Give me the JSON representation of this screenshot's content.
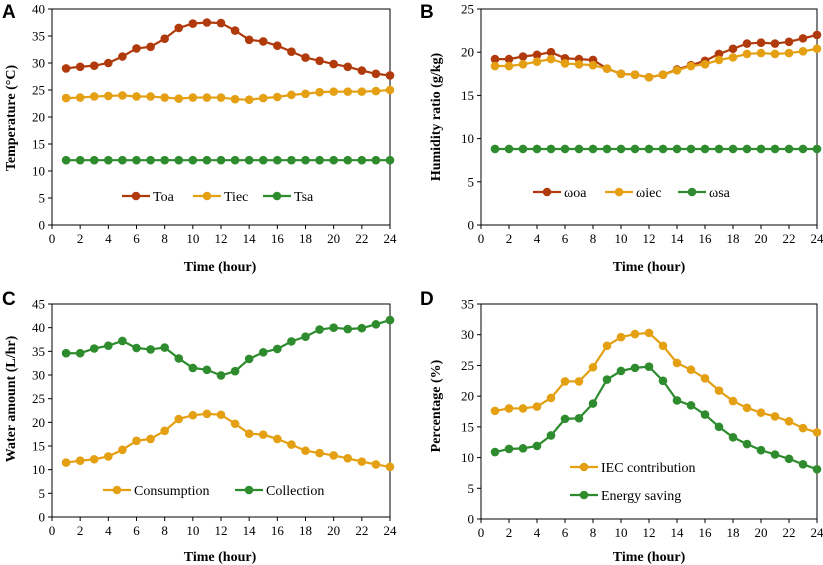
{
  "chart_data": [
    {
      "panel": "A",
      "type": "line",
      "xlabel": "Time (hour)",
      "ylabel": "Temperature (°C)",
      "xlim": [
        0,
        24
      ],
      "ylim": [
        0,
        40
      ],
      "xticks": [
        0,
        2,
        4,
        6,
        8,
        10,
        12,
        14,
        16,
        18,
        20,
        22,
        24
      ],
      "yticks": [
        0,
        5,
        10,
        15,
        20,
        25,
        30,
        35,
        40
      ],
      "x": [
        1,
        2,
        3,
        4,
        5,
        6,
        7,
        8,
        9,
        10,
        11,
        12,
        13,
        14,
        15,
        16,
        17,
        18,
        19,
        20,
        21,
        22,
        23,
        24
      ],
      "series": [
        {
          "name": "Toa",
          "color": "#B03A0C",
          "values": [
            29,
            29.3,
            29.5,
            30,
            31.2,
            32.7,
            33,
            34.5,
            36.5,
            37.3,
            37.5,
            37.4,
            36,
            34.3,
            34,
            33.2,
            32.1,
            31,
            30.4,
            29.8,
            29.3,
            28.6,
            28,
            27.7
          ]
        },
        {
          "name": "Tiec",
          "color": "#E4A012",
          "values": [
            23.5,
            23.6,
            23.8,
            23.9,
            24,
            23.8,
            23.8,
            23.6,
            23.4,
            23.6,
            23.6,
            23.6,
            23.3,
            23.2,
            23.5,
            23.7,
            24.1,
            24.3,
            24.6,
            24.7,
            24.7,
            24.7,
            24.8,
            25
          ]
        },
        {
          "name": "Tsa",
          "color": "#2E8B2E",
          "values": [
            12,
            12,
            12,
            12,
            12,
            12,
            12,
            12,
            12,
            12,
            12,
            12,
            12,
            12,
            12,
            12,
            12,
            12,
            12,
            12,
            12,
            12,
            12,
            12
          ]
        }
      ]
    },
    {
      "panel": "B",
      "type": "line",
      "xlabel": "Time (hour)",
      "ylabel": "Humidity ratio (g/kg)",
      "xlim": [
        0,
        24
      ],
      "ylim": [
        0,
        25
      ],
      "xticks": [
        0,
        2,
        4,
        6,
        8,
        10,
        12,
        14,
        16,
        18,
        20,
        22,
        24
      ],
      "yticks": [
        0,
        5,
        10,
        15,
        20,
        25
      ],
      "x": [
        1,
        2,
        3,
        4,
        5,
        6,
        7,
        8,
        9,
        10,
        11,
        12,
        13,
        14,
        15,
        16,
        17,
        18,
        19,
        20,
        21,
        22,
        23,
        24
      ],
      "series": [
        {
          "name": "ωoa",
          "color": "#B03A0C",
          "values": [
            19.2,
            19.2,
            19.5,
            19.7,
            20,
            19.3,
            19.2,
            19.1,
            18.1,
            17.5,
            17.4,
            17.1,
            17.4,
            18,
            18.5,
            19,
            19.8,
            20.4,
            21,
            21.1,
            21,
            21.2,
            21.6,
            22
          ]
        },
        {
          "name": "ωiec",
          "color": "#E4A012",
          "values": [
            18.4,
            18.4,
            18.6,
            18.9,
            19.2,
            18.7,
            18.6,
            18.5,
            18.1,
            17.5,
            17.4,
            17.1,
            17.4,
            17.9,
            18.4,
            18.6,
            19.1,
            19.4,
            19.8,
            19.9,
            19.8,
            19.9,
            20.1,
            20.4
          ]
        },
        {
          "name": "ωsa",
          "color": "#2E8B2E",
          "values": [
            8.8,
            8.8,
            8.8,
            8.8,
            8.8,
            8.8,
            8.8,
            8.8,
            8.8,
            8.8,
            8.8,
            8.8,
            8.8,
            8.8,
            8.8,
            8.8,
            8.8,
            8.8,
            8.8,
            8.8,
            8.8,
            8.8,
            8.8,
            8.8
          ]
        }
      ]
    },
    {
      "panel": "C",
      "type": "line",
      "xlabel": "Time (hour)",
      "ylabel": "Water amount (L/hr)",
      "xlim": [
        0,
        24
      ],
      "ylim": [
        0,
        45
      ],
      "xticks": [
        0,
        2,
        4,
        6,
        8,
        10,
        12,
        14,
        16,
        18,
        20,
        22,
        24
      ],
      "yticks": [
        0,
        5,
        10,
        15,
        20,
        25,
        30,
        35,
        40,
        45
      ],
      "x": [
        1,
        2,
        3,
        4,
        5,
        6,
        7,
        8,
        9,
        10,
        11,
        12,
        13,
        14,
        15,
        16,
        17,
        18,
        19,
        20,
        21,
        22,
        23,
        24
      ],
      "series": [
        {
          "name": "Consumption",
          "color": "#E4A012",
          "values": [
            11.5,
            11.9,
            12.2,
            12.8,
            14.2,
            16.1,
            16.5,
            18.2,
            20.7,
            21.5,
            21.8,
            21.6,
            19.7,
            17.6,
            17.4,
            16.5,
            15.3,
            14,
            13.5,
            13,
            12.4,
            11.7,
            11.1,
            10.6
          ]
        },
        {
          "name": "Collection",
          "color": "#2E8B2E",
          "values": [
            34.6,
            34.6,
            35.6,
            36.2,
            37.2,
            35.7,
            35.4,
            35.8,
            33.5,
            31.5,
            31.1,
            29.9,
            30.8,
            33.4,
            34.8,
            35.5,
            37.1,
            38.1,
            39.6,
            40,
            39.7,
            39.9,
            40.7,
            41.6
          ]
        }
      ]
    },
    {
      "panel": "D",
      "type": "line",
      "xlabel": "Time (hour)",
      "ylabel": "Percentage (%)",
      "xlim": [
        0,
        24
      ],
      "ylim": [
        0,
        35
      ],
      "xticks": [
        0,
        2,
        4,
        6,
        8,
        10,
        12,
        14,
        16,
        18,
        20,
        22,
        24
      ],
      "yticks": [
        0,
        5,
        10,
        15,
        20,
        25,
        30,
        35
      ],
      "x": [
        1,
        2,
        3,
        4,
        5,
        6,
        7,
        8,
        9,
        10,
        11,
        12,
        13,
        14,
        15,
        16,
        17,
        18,
        19,
        20,
        21,
        22,
        23,
        24
      ],
      "series": [
        {
          "name": "IEC contribution",
          "color": "#E4A012",
          "values": [
            17.6,
            18,
            18,
            18.3,
            19.7,
            22.4,
            22.4,
            24.7,
            28.2,
            29.6,
            30.1,
            30.3,
            28.2,
            25.4,
            24.3,
            22.9,
            20.9,
            19.2,
            18.1,
            17.3,
            16.7,
            15.9,
            14.8,
            14.1
          ]
        },
        {
          "name": "Energy saving",
          "color": "#2E8B2E",
          "values": [
            10.9,
            11.4,
            11.5,
            11.9,
            13.6,
            16.3,
            16.4,
            18.8,
            22.7,
            24.1,
            24.6,
            24.8,
            22.5,
            19.3,
            18.5,
            17,
            15,
            13.3,
            12.2,
            11.2,
            10.5,
            9.8,
            8.9,
            8.1
          ]
        }
      ]
    }
  ]
}
